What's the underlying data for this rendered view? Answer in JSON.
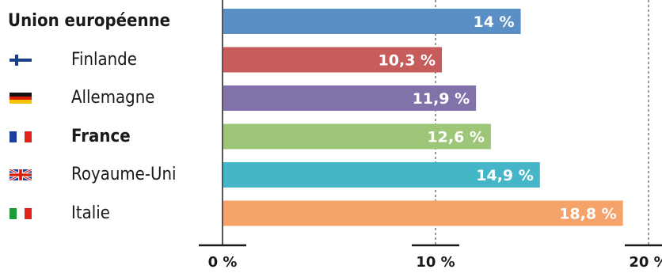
{
  "chart_data": {
    "type": "bar",
    "orientation": "horizontal",
    "categories": [
      "Union européenne",
      "Finlande",
      "Allemagne",
      "France",
      "Royaume-Uni",
      "Italie"
    ],
    "values": [
      14,
      10.3,
      11.9,
      12.6,
      14.9,
      18.8
    ],
    "value_labels": [
      "14 %",
      "10,3 %",
      "11,9 %",
      "12,6 %",
      "14,9 %",
      "18,8 %"
    ],
    "bar_colors": [
      "#5a8fc6",
      "#c65c5c",
      "#8272aa",
      "#9ec679",
      "#44b6c7",
      "#f5a36b"
    ],
    "flags": [
      "",
      "finland-flag-icon",
      "germany-flag-icon",
      "france-flag-icon",
      "uk-flag-icon",
      "italy-flag-icon"
    ],
    "bold_rows": [
      true,
      false,
      false,
      true,
      false,
      false
    ],
    "xlim": [
      0,
      21
    ],
    "x_ticks": [
      0,
      10,
      20
    ],
    "x_tick_labels": [
      "0 %",
      "10 %",
      "20 %"
    ],
    "grid": "dashed vertical lines at 10 and 20",
    "title": "",
    "xlabel": "",
    "ylabel": ""
  }
}
